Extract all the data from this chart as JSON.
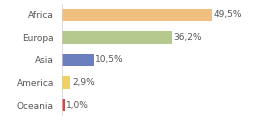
{
  "categories": [
    "Africa",
    "Europa",
    "Asia",
    "America",
    "Oceania"
  ],
  "values": [
    49.5,
    36.2,
    10.5,
    2.9,
    1.0
  ],
  "labels": [
    "49,5%",
    "36,2%",
    "10,5%",
    "2,9%",
    "1,0%"
  ],
  "bar_colors": [
    "#f0c080",
    "#b5c98e",
    "#6b7fbf",
    "#f0d060",
    "#e04040"
  ],
  "background_color": "#ffffff",
  "text_color": "#555555",
  "bar_label_fontsize": 6.5,
  "category_fontsize": 6.5,
  "figsize": [
    2.8,
    1.2
  ],
  "dpi": 100,
  "xlim": [
    0,
    70
  ],
  "bar_height": 0.55
}
